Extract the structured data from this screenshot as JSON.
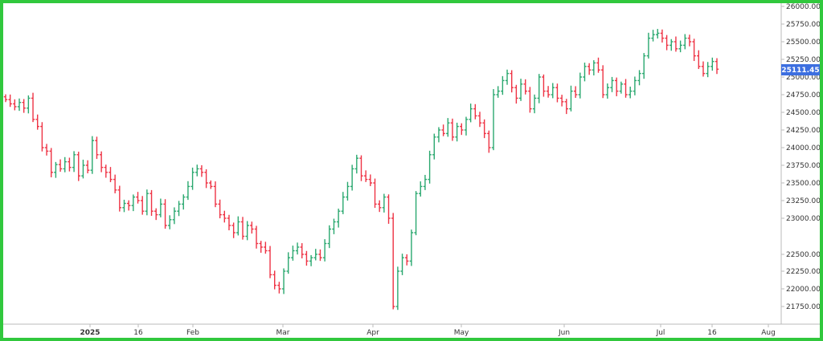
{
  "colors": {
    "frame": "#31c83d",
    "up": "#2aa86f",
    "down": "#ee3344",
    "axis": "#bbbbbb",
    "last_price_bg": "#3d6fe0"
  },
  "chart_data": {
    "type": "ohlc",
    "title": "",
    "xlabel": "",
    "ylabel": "",
    "ylim": [
      21500,
      26000
    ],
    "y_ticks": [
      "26000.00",
      "25750.00",
      "25500.00",
      "25250.00",
      "25000.00",
      "24750.00",
      "24500.00",
      "24250.00",
      "24000.00",
      "23750.00",
      "23500.00",
      "23250.00",
      "23000.00",
      "22500.00",
      "22250.00",
      "22000.00",
      "21750.00"
    ],
    "x_tick_labels": [
      {
        "label": "2025",
        "bold": true
      },
      {
        "label": "16",
        "bold": false
      },
      {
        "label": "Feb",
        "bold": false
      },
      {
        "label": "Mar",
        "bold": false
      },
      {
        "label": "Apr",
        "bold": false
      },
      {
        "label": "May",
        "bold": false
      },
      {
        "label": "Jun",
        "bold": false
      },
      {
        "label": "Jul",
        "bold": false
      },
      {
        "label": "16",
        "bold": false
      },
      {
        "label": "Aug",
        "bold": false
      }
    ],
    "last_price": "25111.45",
    "closes": [
      24680,
      24620,
      24580,
      24640,
      24560,
      24700,
      24400,
      24300,
      24000,
      23950,
      23650,
      23760,
      23700,
      23800,
      23720,
      23900,
      23600,
      23750,
      23680,
      24100,
      23900,
      23720,
      23650,
      23550,
      23400,
      23150,
      23210,
      23180,
      23300,
      23250,
      23100,
      23350,
      23100,
      23050,
      23200,
      22900,
      22980,
      23100,
      23200,
      23300,
      23450,
      23650,
      23700,
      23650,
      23500,
      23450,
      23200,
      23050,
      23000,
      22900,
      22800,
      22950,
      22750,
      22900,
      22850,
      22650,
      22600,
      22550,
      22200,
      22050,
      22000,
      22250,
      22450,
      22550,
      22600,
      22500,
      22400,
      22450,
      22500,
      22450,
      22650,
      22850,
      22950,
      23100,
      23300,
      23450,
      23700,
      23850,
      23600,
      23550,
      23500,
      23200,
      23150,
      23300,
      23000,
      21750,
      22250,
      22450,
      22400,
      22800,
      23350,
      23450,
      23550,
      23900,
      24150,
      24250,
      24200,
      24350,
      24150,
      24300,
      24250,
      24400,
      24550,
      24450,
      24350,
      24200,
      24000,
      24750,
      24800,
      24950,
      25050,
      24850,
      24700,
      24900,
      24800,
      24550,
      24700,
      25000,
      24800,
      24750,
      24850,
      24700,
      24650,
      24550,
      24800,
      24750,
      25000,
      25150,
      25100,
      25200,
      25100,
      24750,
      24850,
      24950,
      24800,
      24900,
      24750,
      24800,
      24950,
      25050,
      25300,
      25550,
      25600,
      25620,
      25550,
      25450,
      25500,
      25400,
      25450,
      25550,
      25500,
      25300,
      25150,
      25050,
      25150,
      25220,
      25111
    ]
  }
}
